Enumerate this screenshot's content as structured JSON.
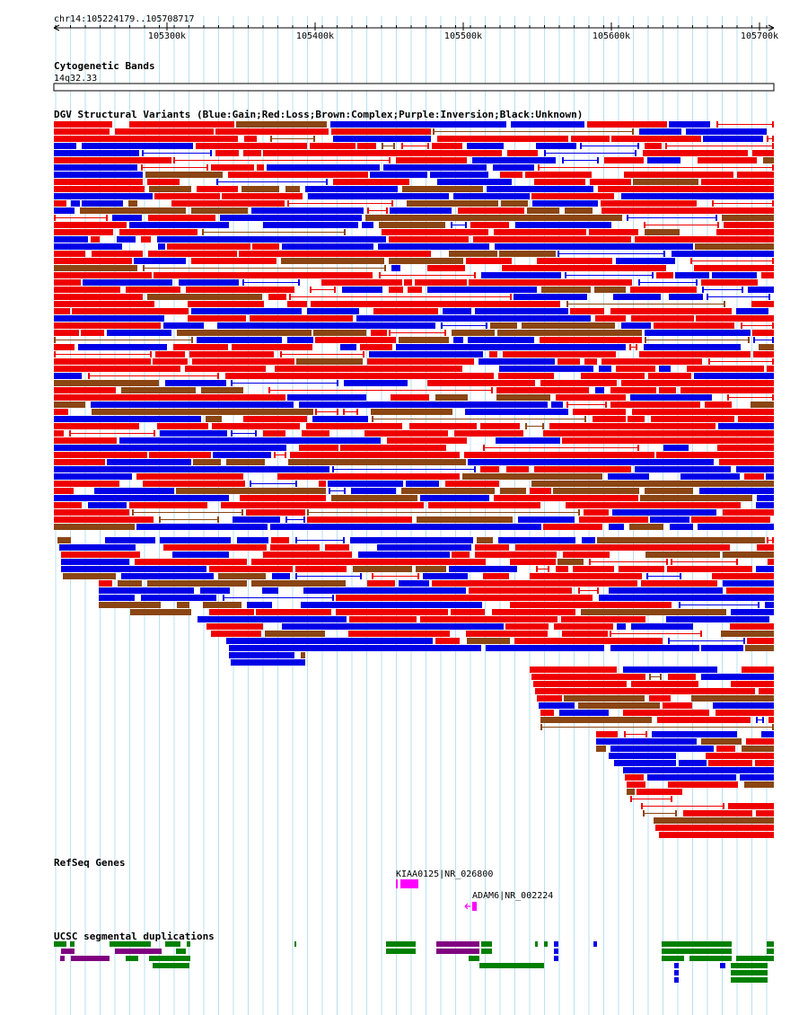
{
  "ruler": {
    "range_label": "chr14:105224179..105708717",
    "ticks": [
      "105300k",
      "105400k",
      "105500k",
      "105600k",
      "105700k"
    ]
  },
  "tracks": {
    "cytoband": {
      "title": "Cytogenetic Bands",
      "band": "14q32.33"
    },
    "dgv": {
      "title": "DGV Structural Variants (Blue:Gain;Red:Loss;Brown:Complex;Purple:Inversion;Black:Unknown)"
    },
    "refseq": {
      "title": "RefSeq Genes",
      "genes": [
        {
          "label": "KIAA0125|NR_026800"
        },
        {
          "label": "ADAM6|NR_002224"
        }
      ]
    },
    "segdup": {
      "title": "UCSC segmental duplications"
    }
  },
  "colors": {
    "gain": "#0000e6",
    "loss": "#ef0000",
    "complex": "#8b4513",
    "inversion": "#800080",
    "unknown": "#000000",
    "gene": "#ff00ff",
    "segdup_green": "#008000",
    "segdup_purple": "#800080",
    "segdup_blue": "#0000e6",
    "gridline": "#a6d8ee"
  },
  "icons": {
    "ruler_left": "arrow-left-icon",
    "ruler_right": "arrow-right-icon",
    "gene_strand": "strand-arrow-icon"
  }
}
